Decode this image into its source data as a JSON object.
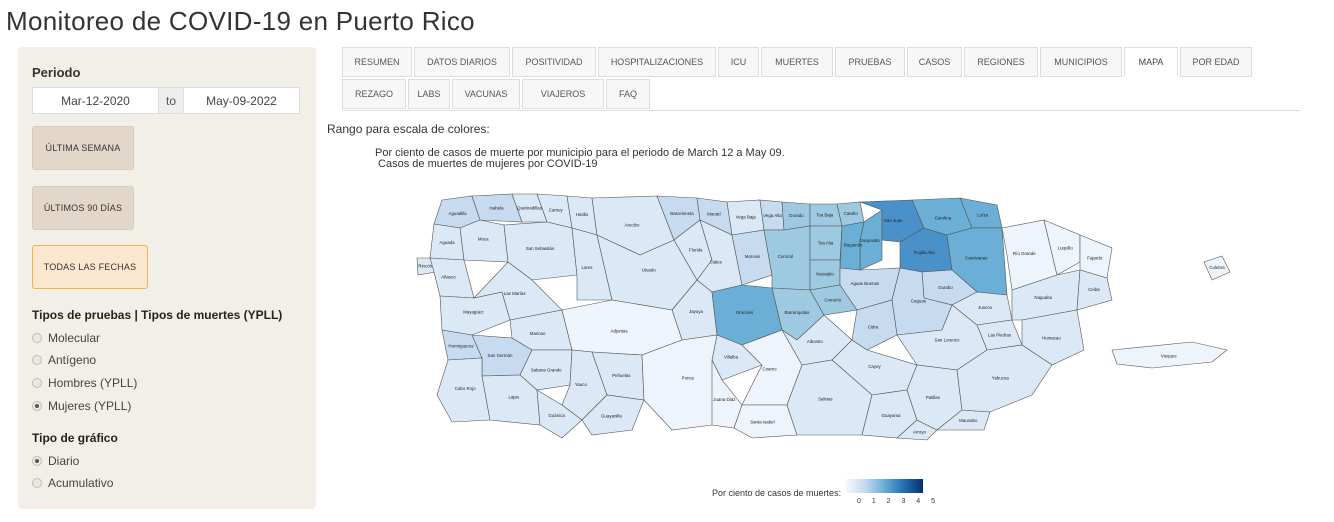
{
  "page": {
    "title": "Monitoreo de COVID-19 en Puerto Rico"
  },
  "sidebar": {
    "periodo_label": "Periodo",
    "date_start": "Mar-12-2020",
    "date_sep": "to",
    "date_end": "May-09-2022",
    "buttons": {
      "last_week": "ÚLTIMA SEMANA",
      "last_90": "ÚLTIMOS 90 DÍAS",
      "all_dates": "TODAS LAS FECHAS"
    },
    "test_types_label": "Tipos de pruebas | Tipos de muertes (YPLL)",
    "test_types": [
      {
        "label": "Molecular",
        "checked": false
      },
      {
        "label": "Antígeno",
        "checked": false
      },
      {
        "label": "Hombres (YPLL)",
        "checked": false
      },
      {
        "label": "Mujeres (YPLL)",
        "checked": true
      }
    ],
    "chart_type_label": "Tipo de gráfico",
    "chart_types": [
      {
        "label": "Diario",
        "checked": true
      },
      {
        "label": "Acumulativo",
        "checked": false
      }
    ]
  },
  "tabs": {
    "row1": [
      "RESUMEN",
      "DATOS DIARIOS",
      "POSITIVIDAD",
      "HOSPITALIZACIONES",
      "ICU",
      "MUERTES",
      "PRUEBAS",
      "CASOS",
      "REGIONES",
      "MUNICIPIOS",
      "MAPA",
      "POR EDAD"
    ],
    "row2": [
      "REZAGO",
      "LABS",
      "VACUNAS",
      "VIAJEROS",
      "FAQ"
    ],
    "active": "MAPA"
  },
  "main": {
    "rango_label": "Rango para escala de colores:",
    "map_title_1": "Por ciento de casos de muerte por municipio para el periodo de March 12 a May 09.",
    "map_title_2": " Casos de muertes de mujeres por COVID-19"
  },
  "map": {
    "colors": {
      "c0": "#eef4fb",
      "c1": "#dbe8f5",
      "c2": "#c6dbef",
      "c3": "#9ecae1",
      "c4": "#6baed6",
      "c5": "#4a90c9"
    },
    "municipalities": [
      {
        "name": "Aguadilla",
        "shade": "c2"
      },
      {
        "name": "Isabela",
        "shade": "c2"
      },
      {
        "name": "Quebradillas",
        "shade": "c1"
      },
      {
        "name": "Camuy",
        "shade": "c1"
      },
      {
        "name": "Hatillo",
        "shade": "c1"
      },
      {
        "name": "Arecibo",
        "shade": "c1"
      },
      {
        "name": "Barceloneta",
        "shade": "c2"
      },
      {
        "name": "Manatí",
        "shade": "c2"
      },
      {
        "name": "Vega Baja",
        "shade": "c1"
      },
      {
        "name": "Vega Alta",
        "shade": "c2"
      },
      {
        "name": "Dorado",
        "shade": "c3"
      },
      {
        "name": "Toa Baja",
        "shade": "c3"
      },
      {
        "name": "Cataño",
        "shade": "c3"
      },
      {
        "name": "Guaynabo",
        "shade": "c4"
      },
      {
        "name": "San Juan",
        "shade": "c5"
      },
      {
        "name": "Trujillo Alto",
        "shade": "c5"
      },
      {
        "name": "Carolina",
        "shade": "c4"
      },
      {
        "name": "Loíza",
        "shade": "c4"
      },
      {
        "name": "Canóvanas",
        "shade": "c4"
      },
      {
        "name": "Río Grande",
        "shade": "c0"
      },
      {
        "name": "Luquillo",
        "shade": "c0"
      },
      {
        "name": "Fajardo",
        "shade": "c0"
      },
      {
        "name": "Culebra",
        "shade": "c0"
      },
      {
        "name": "Aguada",
        "shade": "c1"
      },
      {
        "name": "Moca",
        "shade": "c1"
      },
      {
        "name": "Rincón",
        "shade": "c1"
      },
      {
        "name": "San Sebastián",
        "shade": "c1"
      },
      {
        "name": "Añasco",
        "shade": "c1"
      },
      {
        "name": "Lares",
        "shade": "c1"
      },
      {
        "name": "Utuado",
        "shade": "c1"
      },
      {
        "name": "Florida",
        "shade": "c1"
      },
      {
        "name": "Ciales",
        "shade": "c1"
      },
      {
        "name": "Morovis",
        "shade": "c2"
      },
      {
        "name": "Corozal",
        "shade": "c3"
      },
      {
        "name": "Toa Alta",
        "shade": "c3"
      },
      {
        "name": "Bayamón",
        "shade": "c4"
      },
      {
        "name": "Naranjito",
        "shade": "c3"
      },
      {
        "name": "Mayagüez",
        "shade": "c1"
      },
      {
        "name": "Las Marías",
        "shade": "c1"
      },
      {
        "name": "Maricao",
        "shade": "c1"
      },
      {
        "name": "Jayuya",
        "shade": "c1"
      },
      {
        "name": "Orocovis",
        "shade": "c4"
      },
      {
        "name": "Barranquitas",
        "shade": "c3"
      },
      {
        "name": "Comerío",
        "shade": "c3"
      },
      {
        "name": "Aguas Buenas",
        "shade": "c2"
      },
      {
        "name": "Gurabo",
        "shade": "c2"
      },
      {
        "name": "Juncos",
        "shade": "c1"
      },
      {
        "name": "Las Piedras",
        "shade": "c1"
      },
      {
        "name": "Naguabo",
        "shade": "c1"
      },
      {
        "name": "Ceiba",
        "shade": "c1"
      },
      {
        "name": "Caguas",
        "shade": "c2"
      },
      {
        "name": "Cidra",
        "shade": "c2"
      },
      {
        "name": "San Lorenzo",
        "shade": "c1"
      },
      {
        "name": "Humacao",
        "shade": "c1"
      },
      {
        "name": "Hormigueros",
        "shade": "c2"
      },
      {
        "name": "San Germán",
        "shade": "c2"
      },
      {
        "name": "Adjuntas",
        "shade": "c0"
      },
      {
        "name": "Villalba",
        "shade": "c1"
      },
      {
        "name": "Aibonito",
        "shade": "c1"
      },
      {
        "name": "Coamo",
        "shade": "c0"
      },
      {
        "name": "Cayey",
        "shade": "c1"
      },
      {
        "name": "Cabo Rojo",
        "shade": "c1"
      },
      {
        "name": "Sabana Grande",
        "shade": "c1"
      },
      {
        "name": "Yauco",
        "shade": "c1"
      },
      {
        "name": "Peñuelas",
        "shade": "c1"
      },
      {
        "name": "Ponce",
        "shade": "c0"
      },
      {
        "name": "Juana Díaz",
        "shade": "c0"
      },
      {
        "name": "Santa Isabel",
        "shade": "c0"
      },
      {
        "name": "Salinas",
        "shade": "c1"
      },
      {
        "name": "Guayama",
        "shade": "c1"
      },
      {
        "name": "Arroyo",
        "shade": "c1"
      },
      {
        "name": "Patillas",
        "shade": "c1"
      },
      {
        "name": "Maunabo",
        "shade": "c1"
      },
      {
        "name": "Yabucoa",
        "shade": "c1"
      },
      {
        "name": "Lajas",
        "shade": "c1"
      },
      {
        "name": "Guánica",
        "shade": "c1"
      },
      {
        "name": "Guayanilla",
        "shade": "c1"
      },
      {
        "name": "Vieques",
        "shade": "c0"
      }
    ]
  },
  "legend": {
    "label": "Por ciento de casos de muertes:",
    "ticks": [
      "0",
      "1",
      "2",
      "3",
      "4",
      "5"
    ]
  }
}
